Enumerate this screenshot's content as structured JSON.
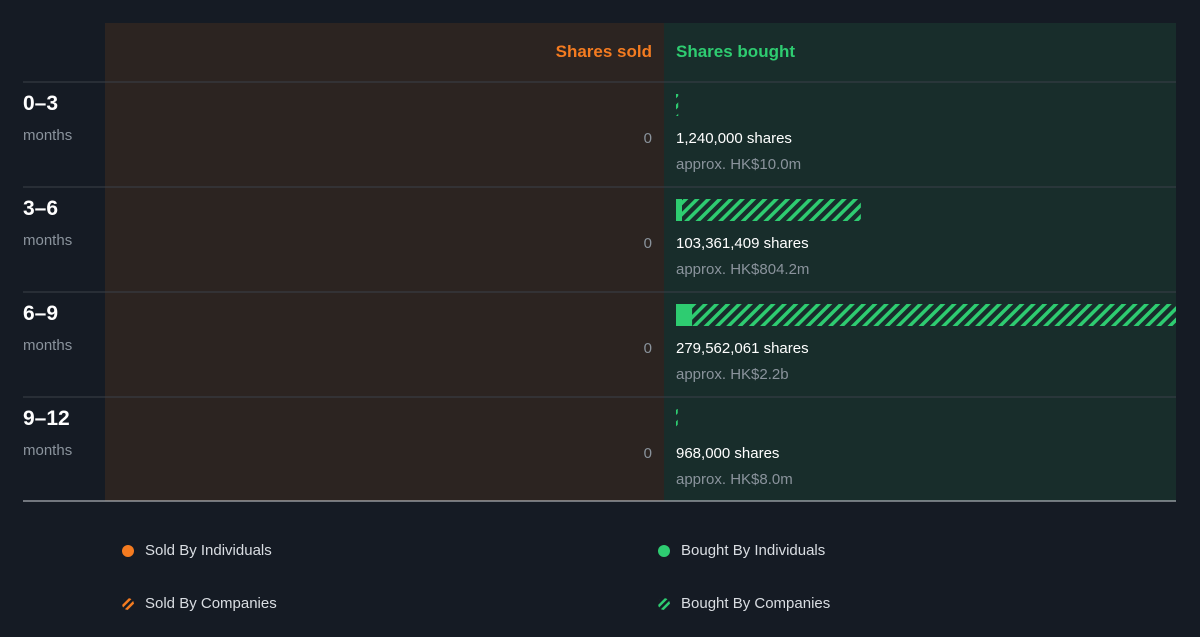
{
  "chart_data": {
    "type": "bar",
    "header": {
      "sold": "Shares sold",
      "bought": "Shares bought"
    },
    "unit_label": "months",
    "rows": [
      {
        "period": "0–3",
        "sold": 0,
        "sold_label": "0",
        "bought_individuals": 0,
        "bought_companies": 1240000,
        "bought_label": "1,240,000 shares",
        "bought_value": "approx. HK$10.0m"
      },
      {
        "period": "3–6",
        "sold": 0,
        "sold_label": "0",
        "bought_individuals": 1500000,
        "bought_companies": 101861409,
        "bought_label": "103,361,409 shares",
        "bought_value": "approx. HK$804.2m"
      },
      {
        "period": "6–9",
        "sold": 0,
        "sold_label": "0",
        "bought_individuals": 9000000,
        "bought_companies": 270562061,
        "bought_label": "279,562,061 shares",
        "bought_value": "approx. HK$2.2b"
      },
      {
        "period": "9–12",
        "sold": 0,
        "sold_label": "0",
        "bought_individuals": 0,
        "bought_companies": 968000,
        "bought_label": "968,000 shares",
        "bought_value": "approx. HK$8.0m"
      }
    ],
    "max_bought": 279562061,
    "legend": [
      {
        "label": "Sold By Individuals",
        "kind": "sold-individuals"
      },
      {
        "label": "Sold By Companies",
        "kind": "sold-companies"
      },
      {
        "label": "Bought By Individuals",
        "kind": "bought-individuals"
      },
      {
        "label": "Bought By Companies",
        "kind": "bought-companies"
      }
    ],
    "colors": {
      "page_bg": "#151b24",
      "sold_panel": "#2c2421",
      "bought_panel": "#182d2b",
      "sold": "#f47b20",
      "bought": "#2ecc71",
      "muted": "#8a939c",
      "divider": "#3a4049"
    }
  }
}
